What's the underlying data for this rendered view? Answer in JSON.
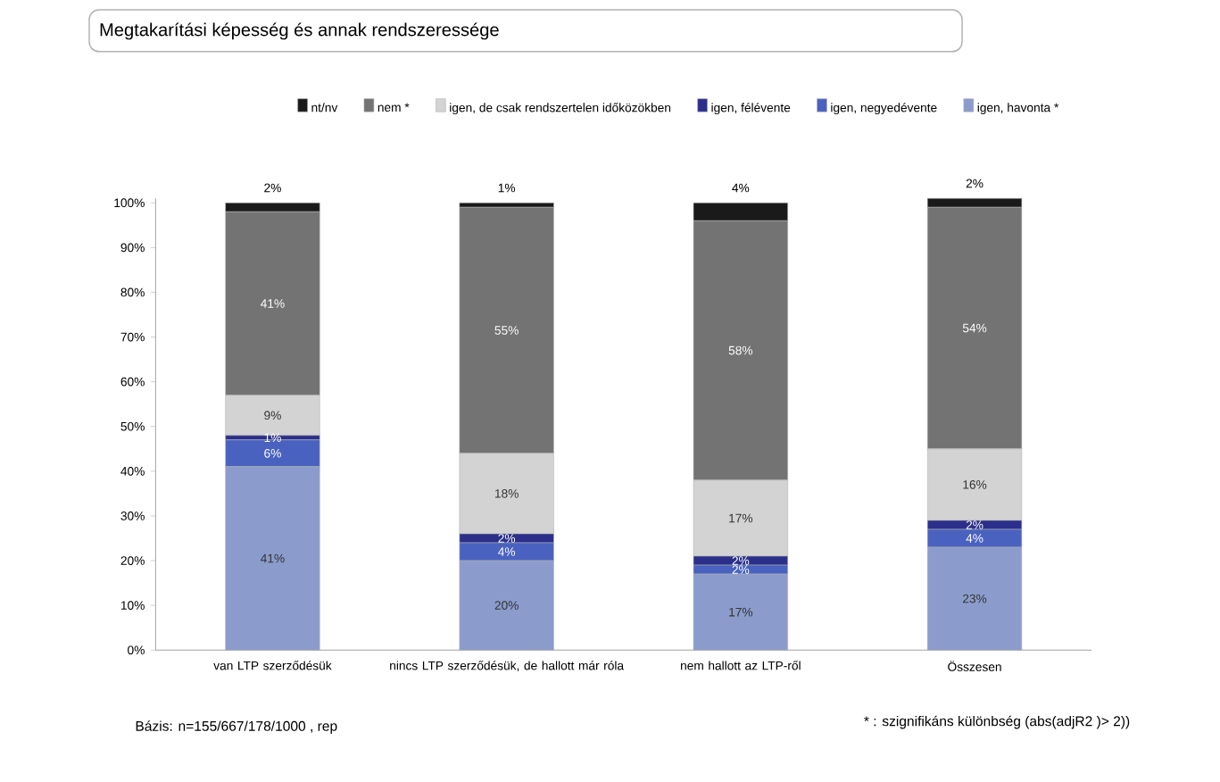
{
  "chart_data": {
    "type": "bar",
    "stacked": true,
    "title": "Megtakarítási képesség és annak rendszeressége",
    "categories": [
      "van LTP szerződésük",
      "nincs LTP szerződésük, de hallott már róla",
      "nem hallott az LTP-ről",
      "Összesen"
    ],
    "series": [
      {
        "name": "igen, havonta *",
        "color": "#8b9ccc",
        "values": [
          41,
          20,
          17,
          23
        ],
        "value_labels": [
          "41%",
          "20%",
          "17%",
          "23%"
        ]
      },
      {
        "name": "igen, negyedévente",
        "color": "#4a62bf",
        "values": [
          6,
          4,
          2,
          4
        ],
        "value_labels": [
          "6%",
          "4%",
          "2%",
          "4%"
        ]
      },
      {
        "name": "igen, félévente",
        "color": "#2b2f8a",
        "values": [
          1,
          2,
          2,
          2
        ],
        "value_labels": [
          "1%",
          "2%",
          "2%",
          "2%"
        ]
      },
      {
        "name": "igen, de csak rendszertelen időközökben",
        "color": "#d3d3d3",
        "values": [
          9,
          18,
          17,
          16
        ],
        "value_labels": [
          "9%",
          "18%",
          "17%",
          "16%"
        ]
      },
      {
        "name": "nem *",
        "color": "#737373",
        "values": [
          41,
          55,
          58,
          54
        ],
        "value_labels": [
          "41%",
          "55%",
          "58%",
          "54%"
        ]
      },
      {
        "name": "nt/nv",
        "color": "#1a1a1a",
        "values": [
          2,
          1,
          4,
          2
        ],
        "value_labels": [
          "2%",
          "1%",
          "4%",
          "2%"
        ]
      }
    ],
    "ylim": [
      0,
      101
    ],
    "yticks": [
      {
        "value": 0,
        "label": "0%"
      },
      {
        "value": 10,
        "label": "10%"
      },
      {
        "value": 20,
        "label": "20%"
      },
      {
        "value": 30,
        "label": "30%"
      },
      {
        "value": 40,
        "label": "40%"
      },
      {
        "value": 50,
        "label": "50%"
      },
      {
        "value": 60,
        "label": "60%"
      },
      {
        "value": 70,
        "label": "70%"
      },
      {
        "value": 80,
        "label": "80%"
      },
      {
        "value": 90,
        "label": "90%"
      },
      {
        "value": 100,
        "label": "100%"
      }
    ],
    "legend": "top",
    "annotations": [
      "Bázis: n=155/667/178/1000  , rep",
      "* : szignifikáns különbség (abs(adjR2 )> 2))"
    ]
  }
}
